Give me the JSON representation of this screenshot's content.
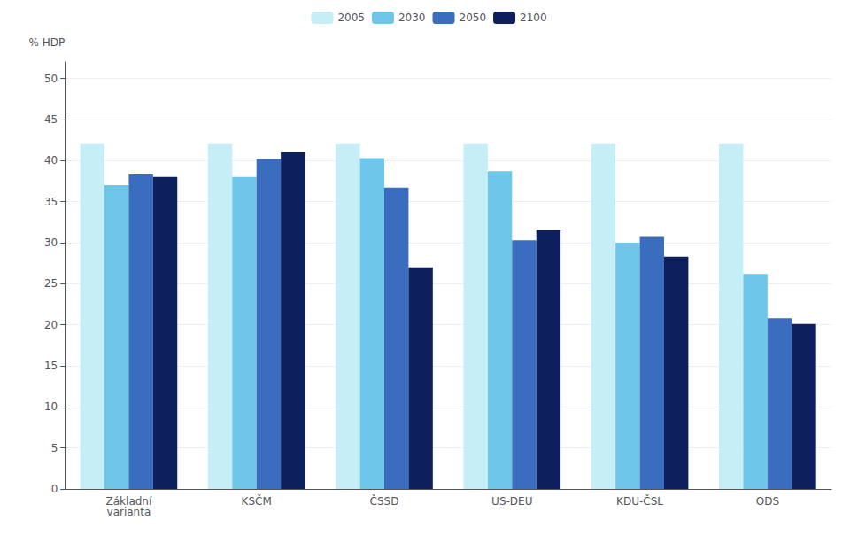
{
  "chart_data": {
    "type": "bar",
    "categories": [
      "Základní\nvarianta",
      "KSČM",
      "ČSSD",
      "US-DEU",
      "KDU-ČSL",
      "ODS"
    ],
    "series": [
      {
        "name": "2005",
        "color": "#c6eef7",
        "values": [
          42.0,
          42.0,
          42.0,
          42.0,
          42.0,
          42.0
        ]
      },
      {
        "name": "2030",
        "color": "#6ec6e8",
        "values": [
          37.0,
          38.0,
          40.3,
          38.7,
          30.0,
          26.2
        ]
      },
      {
        "name": "2050",
        "color": "#3b6dbf",
        "values": [
          38.3,
          40.2,
          36.7,
          30.3,
          30.7,
          20.8
        ]
      },
      {
        "name": "2100",
        "color": "#0d1f5c",
        "values": [
          38.0,
          41.0,
          27.0,
          31.5,
          28.3,
          20.1
        ]
      }
    ],
    "ylabel": "% HDP",
    "ylim": [
      0,
      52
    ],
    "yticks": [
      0,
      5,
      10,
      15,
      20,
      25,
      30,
      35,
      40,
      45,
      50
    ],
    "grid": true,
    "legend": "top"
  }
}
